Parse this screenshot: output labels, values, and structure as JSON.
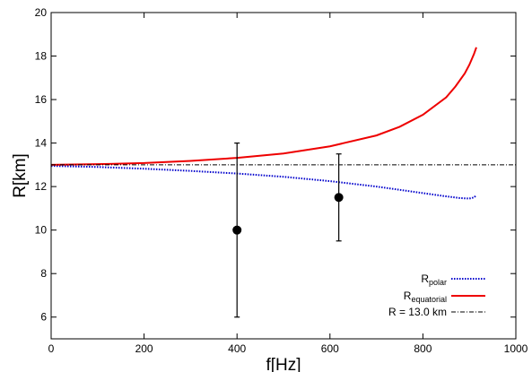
{
  "chart_data": {
    "type": "line",
    "xlabel": "f[Hz]",
    "ylabel": "R[km]",
    "xlim": [
      0,
      1000
    ],
    "ylim": [
      5,
      20
    ],
    "x_ticks": [
      0,
      200,
      400,
      600,
      800,
      1000
    ],
    "y_ticks": [
      6,
      8,
      10,
      12,
      14,
      16,
      18,
      20
    ],
    "grid": false,
    "legend_position": "bottom-right",
    "series": [
      {
        "name": "R_polar",
        "legend_main": "R",
        "legend_sub": "polar",
        "color": "#0000cc",
        "style": "dotted",
        "x": [
          0,
          100,
          200,
          300,
          400,
          500,
          600,
          700,
          800,
          850,
          880,
          900,
          910,
          915
        ],
        "y": [
          12.95,
          12.9,
          12.82,
          12.72,
          12.6,
          12.45,
          12.25,
          12.0,
          11.7,
          11.55,
          11.47,
          11.45,
          11.5,
          11.6
        ]
      },
      {
        "name": "R_equatorial",
        "legend_main": "R",
        "legend_sub": "equatorial",
        "color": "#ee0000",
        "style": "solid",
        "x": [
          0,
          100,
          200,
          300,
          400,
          500,
          600,
          700,
          750,
          800,
          850,
          870,
          890,
          900,
          910,
          915
        ],
        "y": [
          13.0,
          13.03,
          13.08,
          13.18,
          13.32,
          13.52,
          13.85,
          14.35,
          14.75,
          15.3,
          16.1,
          16.6,
          17.2,
          17.6,
          18.1,
          18.4
        ]
      },
      {
        "name": "R = 13.0 km",
        "legend_main": "R = 13.0 km",
        "legend_sub": "",
        "color": "#000000",
        "style": "dashdot",
        "x": [
          0,
          1000
        ],
        "y": [
          13.0,
          13.0
        ]
      }
    ],
    "error_points": [
      {
        "x": 400,
        "y": 10.0,
        "y_low": 6.0,
        "y_high": 14.0
      },
      {
        "x": 619,
        "y": 11.5,
        "y_low": 9.5,
        "y_high": 13.5
      }
    ]
  }
}
